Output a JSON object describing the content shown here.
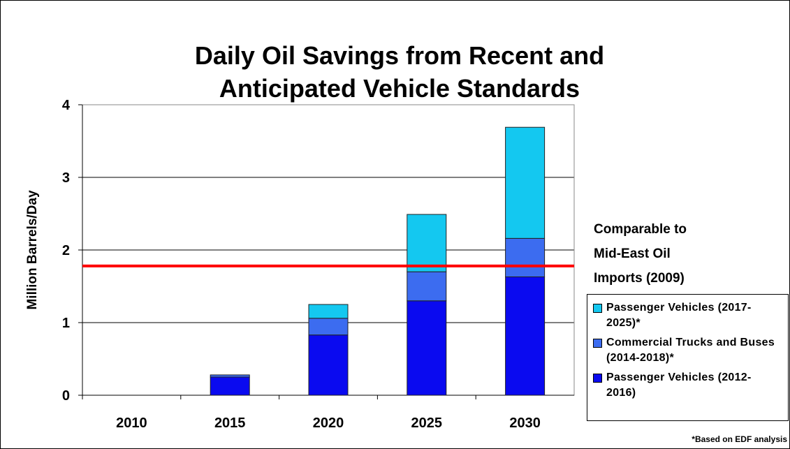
{
  "chart_data": {
    "type": "stacked_bar",
    "title": [
      "Daily Oil Savings from Recent and",
      "Anticipated Vehicle Standards"
    ],
    "y_label": "Million Barrels/Day",
    "categories": [
      "2010",
      "2015",
      "2020",
      "2025",
      "2030"
    ],
    "series": [
      {
        "name": "Passenger Vehicles (2012-2016)",
        "color": "#0a0af0",
        "values": [
          0,
          0.25,
          0.83,
          1.3,
          1.63
        ]
      },
      {
        "name": "Commercial Trucks and Buses (2014-2018)*",
        "color": "#3c6cf0",
        "values": [
          0,
          0.03,
          0.23,
          0.4,
          0.53
        ]
      },
      {
        "name": "Passenger Vehicles (2017-2025)*",
        "color": "#14c8f0",
        "values": [
          0,
          0,
          0.19,
          0.79,
          1.53
        ]
      }
    ],
    "ylim": [
      0,
      4
    ],
    "yticks": [
      0,
      1,
      2,
      3,
      4
    ],
    "grid": true,
    "reference_line": {
      "value": 1.78,
      "color": "#ff0000"
    },
    "annotation": [
      "Comparable to",
      "Mid-East Oil",
      "Imports (2009)"
    ],
    "footnote": "*Based on EDF analysis"
  }
}
